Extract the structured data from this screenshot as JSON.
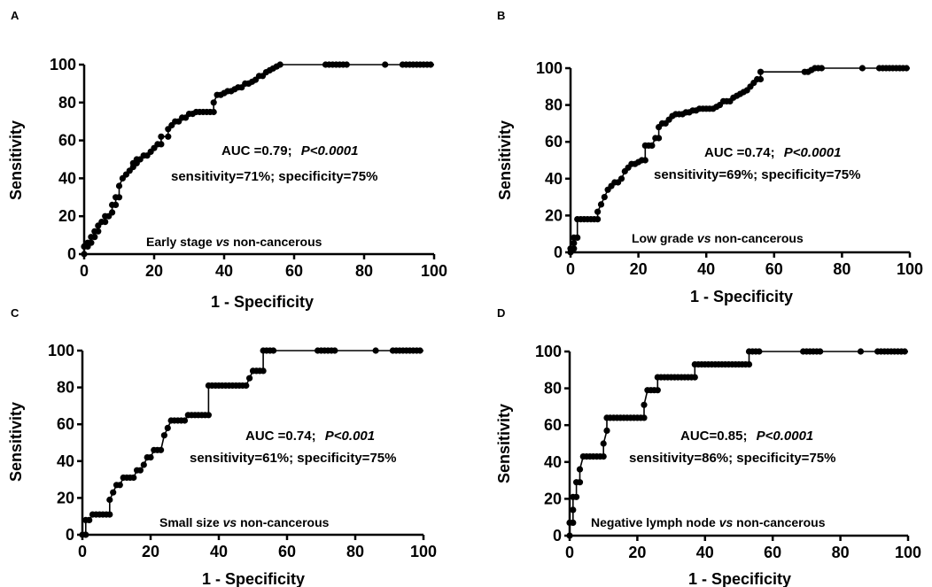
{
  "chart_data": [
    {
      "panel": "A",
      "type": "line",
      "xlabel": "1 - Specificity",
      "ylabel": "Sensitivity",
      "xlim": [
        0,
        100
      ],
      "ylim": [
        0,
        100
      ],
      "xticks": [
        "0",
        "20",
        "40",
        "60",
        "80",
        "100"
      ],
      "yticks": [
        "0",
        "20",
        "40",
        "60",
        "80",
        "100"
      ],
      "annotation_auc": "AUC =0.79;",
      "annotation_p": "P<0.0001",
      "annotation_stats": "sensitivity=71%; specificity=75%",
      "comparison_prefix": "Early stage ",
      "comparison_vs": "vs",
      "comparison_suffix": " non-cancerous",
      "x": [
        0,
        0,
        1,
        1,
        2,
        2,
        3,
        3,
        4,
        4,
        5,
        6,
        6,
        7,
        8,
        8,
        9,
        9,
        10,
        10,
        11,
        12,
        13,
        14,
        14,
        15,
        15,
        16,
        17,
        18,
        19,
        20,
        21,
        22,
        22,
        24,
        24,
        25,
        26,
        27,
        28,
        29,
        30,
        31,
        32,
        33,
        34,
        35,
        36,
        37,
        37,
        38,
        39,
        40,
        41,
        42,
        43,
        44,
        45,
        46,
        47,
        48,
        49,
        50,
        51,
        52,
        53,
        54,
        55,
        56,
        69,
        70,
        71,
        72,
        73,
        74,
        75,
        86,
        91,
        92,
        93,
        94,
        95,
        96,
        97,
        98,
        99
      ],
      "y": [
        0,
        4,
        4,
        6,
        6,
        9,
        9,
        12,
        12,
        15,
        17,
        17,
        20,
        20,
        22,
        26,
        26,
        30,
        30,
        36,
        40,
        42,
        44,
        46,
        48,
        48,
        50,
        50,
        52,
        52,
        54,
        56,
        58,
        58,
        62,
        62,
        66,
        68,
        70,
        70,
        72,
        72,
        74,
        74,
        75,
        75,
        75,
        75,
        75,
        75,
        80,
        84,
        84,
        85,
        86,
        86,
        87,
        88,
        88,
        90,
        90,
        91,
        92,
        94,
        94,
        96,
        97,
        98,
        99,
        100,
        100,
        100,
        100,
        100,
        100,
        100,
        100,
        100,
        100,
        100,
        100,
        100,
        100,
        100,
        100,
        100,
        100
      ]
    },
    {
      "panel": "B",
      "type": "line",
      "xlabel": "1 - Specificity",
      "ylabel": "Sensitivity",
      "xlim": [
        0,
        100
      ],
      "ylim": [
        0,
        100
      ],
      "xticks": [
        "0",
        "20",
        "40",
        "60",
        "80",
        "100"
      ],
      "yticks": [
        "0",
        "20",
        "40",
        "60",
        "80",
        "100"
      ],
      "annotation_auc": "AUC =0.74;",
      "annotation_p": "P<0.0001",
      "annotation_stats": "sensitivity=69%; specificity=75%",
      "comparison_prefix": "Low grade ",
      "comparison_vs": "vs",
      "comparison_suffix": " non-cancerous",
      "x": [
        0,
        0,
        1,
        1,
        1,
        2,
        2,
        3,
        4,
        5,
        6,
        7,
        8,
        8,
        9,
        10,
        11,
        12,
        13,
        14,
        15,
        16,
        17,
        18,
        19,
        20,
        21,
        22,
        22,
        23,
        24,
        25,
        26,
        26,
        27,
        28,
        29,
        30,
        31,
        32,
        33,
        34,
        35,
        36,
        37,
        38,
        39,
        40,
        41,
        42,
        43,
        44,
        45,
        46,
        47,
        48,
        49,
        50,
        51,
        52,
        53,
        54,
        55,
        56,
        56,
        69,
        70,
        71,
        72,
        73,
        74,
        86,
        91,
        92,
        93,
        94,
        95,
        96,
        97,
        98,
        99
      ],
      "y": [
        0,
        2,
        2,
        5,
        8,
        8,
        18,
        18,
        18,
        18,
        18,
        18,
        18,
        22,
        26,
        30,
        34,
        36,
        38,
        38,
        40,
        44,
        46,
        48,
        48,
        49,
        50,
        50,
        58,
        58,
        58,
        62,
        62,
        68,
        70,
        70,
        72,
        74,
        75,
        75,
        75,
        76,
        76,
        77,
        77,
        78,
        78,
        78,
        78,
        78,
        79,
        80,
        82,
        82,
        82,
        84,
        85,
        86,
        87,
        88,
        90,
        92,
        94,
        94,
        98,
        98,
        98,
        99,
        100,
        100,
        100,
        100,
        100,
        100,
        100,
        100,
        100,
        100,
        100,
        100,
        100
      ]
    },
    {
      "panel": "C",
      "type": "line",
      "xlabel": "1 - Specificity",
      "ylabel": "Sensitivity",
      "xlim": [
        0,
        100
      ],
      "ylim": [
        0,
        100
      ],
      "xticks": [
        "0",
        "20",
        "40",
        "60",
        "80",
        "100"
      ],
      "yticks": [
        "0",
        "20",
        "40",
        "60",
        "80",
        "100"
      ],
      "annotation_auc": "AUC =0.74;",
      "annotation_p": "P<0.001",
      "annotation_stats": "sensitivity=61%; specificity=75%",
      "comparison_prefix": "Small size ",
      "comparison_vs": "vs",
      "comparison_suffix": " non-cancerous",
      "x": [
        0,
        1,
        1,
        2,
        3,
        4,
        5,
        6,
        7,
        8,
        8,
        9,
        10,
        11,
        12,
        13,
        14,
        15,
        16,
        17,
        18,
        19,
        20,
        21,
        22,
        23,
        24,
        25,
        26,
        27,
        28,
        29,
        30,
        31,
        32,
        33,
        34,
        35,
        36,
        37,
        37,
        38,
        39,
        40,
        41,
        42,
        43,
        44,
        45,
        46,
        47,
        48,
        49,
        50,
        51,
        52,
        53,
        53,
        54,
        55,
        56,
        69,
        70,
        71,
        72,
        73,
        74,
        86,
        91,
        92,
        93,
        94,
        95,
        96,
        97,
        98,
        99
      ],
      "y": [
        0,
        0,
        8,
        8,
        11,
        11,
        11,
        11,
        11,
        11,
        19,
        23,
        27,
        27,
        31,
        31,
        31,
        31,
        35,
        35,
        38,
        42,
        42,
        46,
        46,
        46,
        54,
        58,
        62,
        62,
        62,
        62,
        62,
        65,
        65,
        65,
        65,
        65,
        65,
        65,
        81,
        81,
        81,
        81,
        81,
        81,
        81,
        81,
        81,
        81,
        81,
        81,
        85,
        89,
        89,
        89,
        89,
        100,
        100,
        100,
        100,
        100,
        100,
        100,
        100,
        100,
        100,
        100,
        100,
        100,
        100,
        100,
        100,
        100,
        100,
        100,
        100
      ]
    },
    {
      "panel": "D",
      "type": "line",
      "xlabel": "1 - Specificity",
      "ylabel": "Sensitivity",
      "xlim": [
        0,
        100
      ],
      "ylim": [
        0,
        100
      ],
      "xticks": [
        "0",
        "20",
        "40",
        "60",
        "80",
        "100"
      ],
      "yticks": [
        "0",
        "20",
        "40",
        "60",
        "80",
        "100"
      ],
      "annotation_auc": "AUC=0.85;",
      "annotation_p": "P<0.0001",
      "annotation_stats": "sensitivity=86%; specificity=75%",
      "comparison_prefix": "Negative lymph node ",
      "comparison_vs": "vs",
      "comparison_suffix": " non-cancerous",
      "x": [
        0,
        0,
        1,
        1,
        1,
        2,
        2,
        3,
        3,
        4,
        5,
        6,
        7,
        8,
        9,
        10,
        10,
        11,
        11,
        12,
        13,
        14,
        15,
        16,
        17,
        18,
        19,
        20,
        21,
        22,
        22,
        23,
        24,
        25,
        26,
        26,
        27,
        28,
        29,
        30,
        31,
        32,
        33,
        34,
        35,
        36,
        37,
        37,
        38,
        39,
        40,
        41,
        42,
        43,
        44,
        45,
        46,
        47,
        48,
        49,
        50,
        51,
        52,
        53,
        53,
        54,
        55,
        56,
        69,
        70,
        71,
        72,
        73,
        74,
        86,
        91,
        92,
        93,
        94,
        95,
        96,
        97,
        98,
        99
      ],
      "y": [
        0,
        7,
        7,
        14,
        21,
        21,
        29,
        29,
        36,
        43,
        43,
        43,
        43,
        43,
        43,
        43,
        50,
        57,
        64,
        64,
        64,
        64,
        64,
        64,
        64,
        64,
        64,
        64,
        64,
        64,
        71,
        79,
        79,
        79,
        79,
        86,
        86,
        86,
        86,
        86,
        86,
        86,
        86,
        86,
        86,
        86,
        86,
        93,
        93,
        93,
        93,
        93,
        93,
        93,
        93,
        93,
        93,
        93,
        93,
        93,
        93,
        93,
        93,
        93,
        100,
        100,
        100,
        100,
        100,
        100,
        100,
        100,
        100,
        100,
        100,
        100,
        100,
        100,
        100,
        100,
        100,
        100,
        100,
        100
      ]
    }
  ]
}
